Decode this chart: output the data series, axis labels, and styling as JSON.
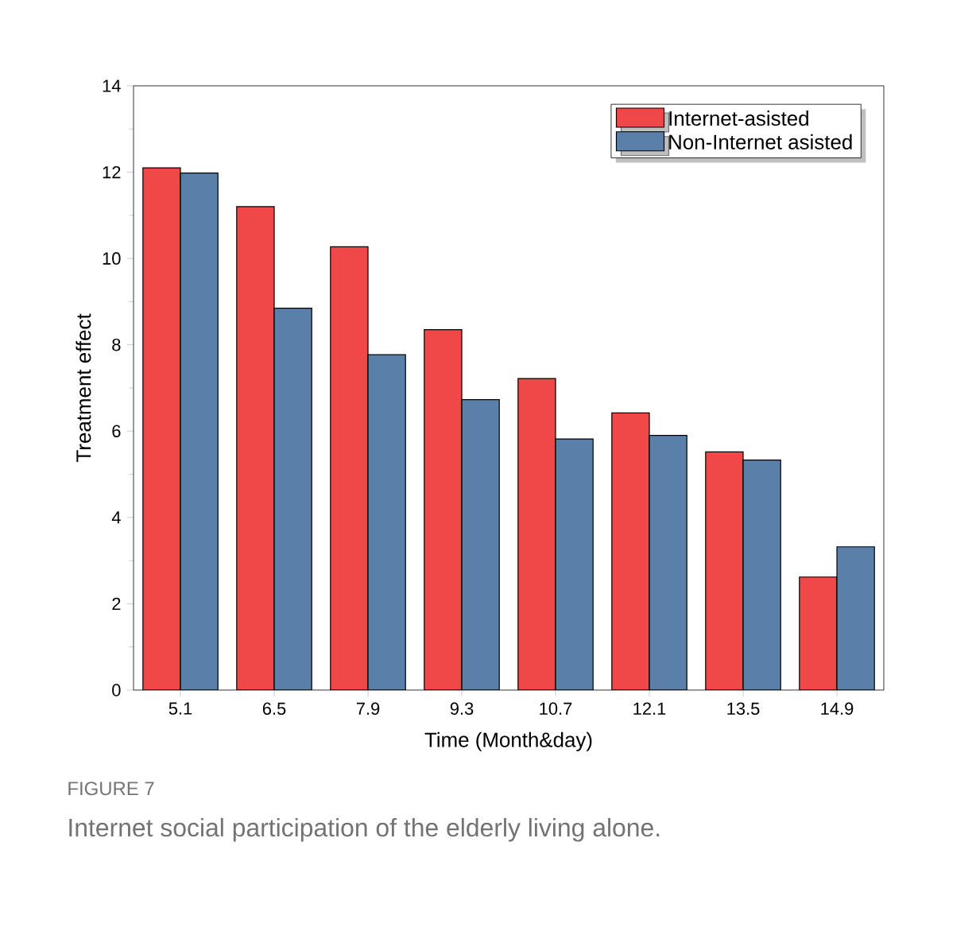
{
  "chart_data": {
    "type": "bar",
    "xlabel": "Time (Month&day)",
    "ylabel": "Treatment effect",
    "categories": [
      "5.1",
      "6.5",
      "7.9",
      "9.3",
      "10.7",
      "12.1",
      "13.5",
      "14.9"
    ],
    "series": [
      {
        "name": "Internet-asisted",
        "color": "#f04848",
        "values": [
          12.1,
          11.2,
          10.27,
          8.35,
          7.22,
          6.42,
          5.52,
          2.62
        ]
      },
      {
        "name": "Non-Internet asisted",
        "color": "#5a7fa8",
        "values": [
          11.98,
          8.85,
          7.77,
          6.73,
          5.82,
          5.9,
          5.33,
          3.32
        ]
      }
    ],
    "ylim": [
      0,
      14
    ],
    "yticks": [
      0,
      2,
      4,
      6,
      8,
      10,
      12,
      14
    ],
    "legend": "top right",
    "grid": false,
    "annotations": [
      "FIGURE 7",
      "Internet social participation of the elderly living alone."
    ]
  }
}
